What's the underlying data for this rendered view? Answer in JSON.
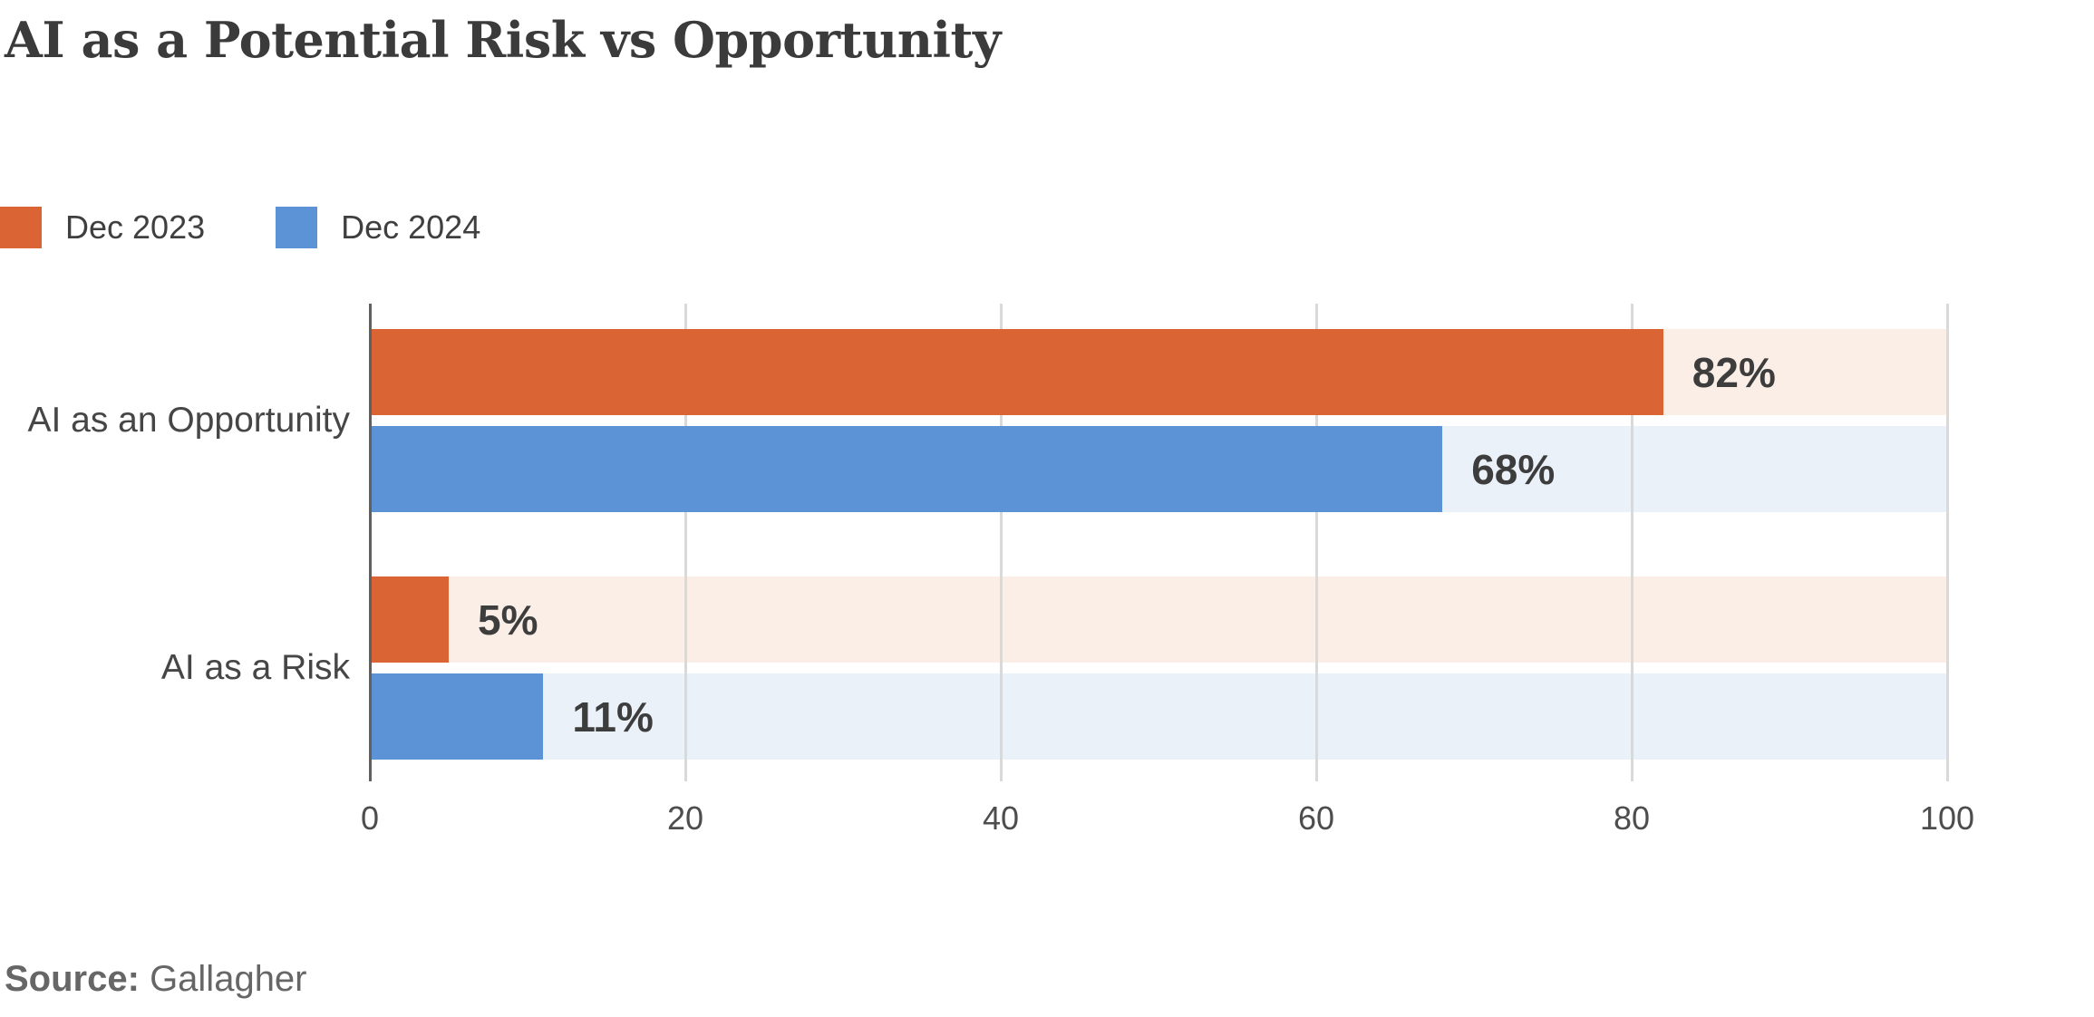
{
  "title": "AI as a Potential Risk vs Opportunity",
  "source": {
    "label": "Source:",
    "value": "Gallagher"
  },
  "chart_data": {
    "type": "bar",
    "orientation": "horizontal",
    "title": "AI as a Potential Risk vs Opportunity",
    "categories": [
      "AI as an Opportunity",
      "AI as a Risk"
    ],
    "series": [
      {
        "name": "Dec 2023",
        "values": [
          82,
          5
        ],
        "color": "#DB6434",
        "track_color": "#FAEEE7"
      },
      {
        "name": "Dec 2024",
        "values": [
          68,
          11
        ],
        "color": "#5B93D6",
        "track_color": "#EAF1F9"
      }
    ],
    "value_suffix": "%",
    "xlim": [
      0,
      100
    ],
    "x_ticks": [
      0,
      20,
      40,
      60,
      80,
      100
    ],
    "grid": true,
    "legend_position": "top-left",
    "source": "Gallagher"
  },
  "colors": {
    "background": "#FFFFFF",
    "title": "#3B3B3B",
    "axis_line": "#606060",
    "gridline": "#D9D9D9",
    "tick_label": "#4D4D4D",
    "category_label": "#464646",
    "value_label": "#3D3D3D",
    "legend_label": "#3F3F3F",
    "source_text": "#666666"
  }
}
